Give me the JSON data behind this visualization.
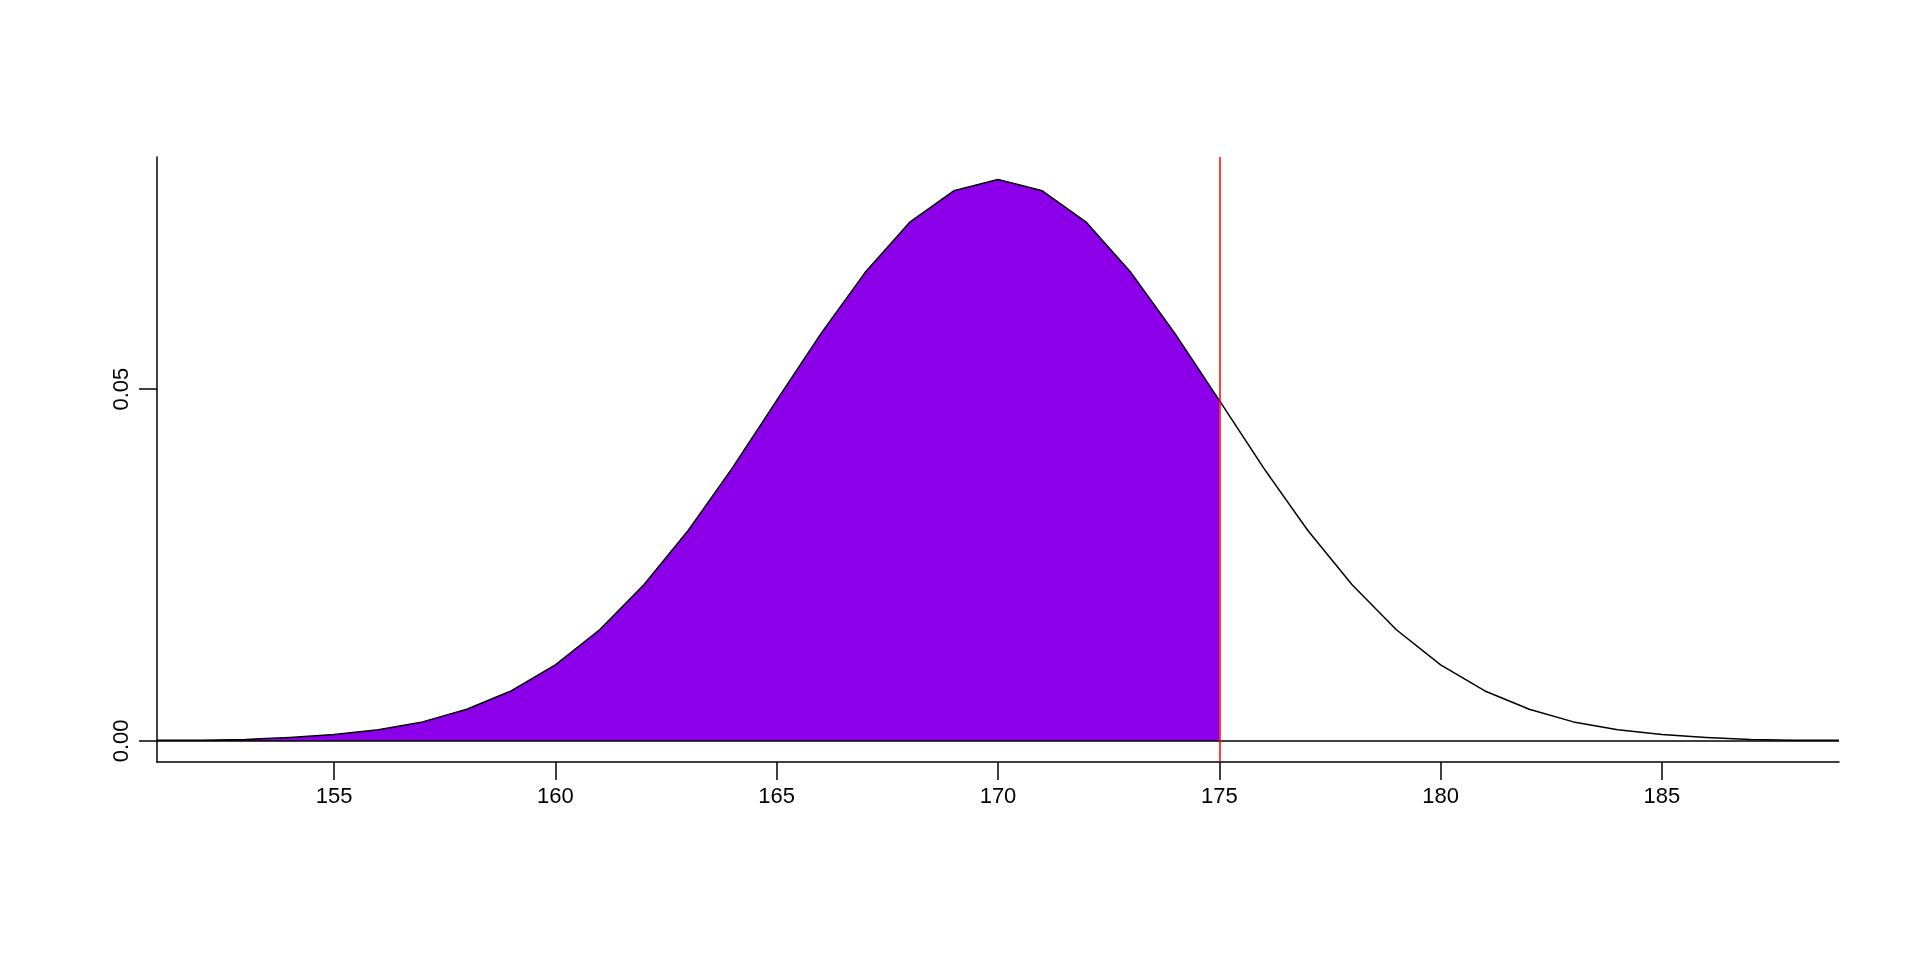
{
  "chart_data": {
    "type": "line",
    "xlim": [
      151,
      189
    ],
    "ylim": [
      -0.003,
      0.083
    ],
    "xticks": [
      155,
      160,
      165,
      170,
      175,
      180,
      185
    ],
    "yticks": [
      {
        "value": 0,
        "label": "0.00"
      },
      {
        "value": 0.05,
        "label": "0.05"
      }
    ],
    "grid": false,
    "marker": "none",
    "line_style": "solid",
    "series": [
      {
        "type": "area",
        "color": "#8b00e8",
        "x": [
          151,
          152,
          153,
          154,
          155,
          156,
          157,
          158,
          159,
          160,
          161,
          162,
          163,
          164,
          165,
          166,
          167,
          168,
          169,
          170,
          171,
          172,
          173,
          174,
          175
        ],
        "values": [
          0.0001,
          0.0001,
          0.0002,
          0.0005,
          0.0009,
          0.0016,
          0.0027,
          0.0045,
          0.0071,
          0.0108,
          0.0158,
          0.0222,
          0.0299,
          0.0388,
          0.0484,
          0.0579,
          0.0666,
          0.0737,
          0.0782,
          0.0798,
          0.0782,
          0.0737,
          0.0666,
          0.0579,
          0.0484
        ]
      },
      {
        "color": "#000000",
        "x": [
          151,
          152,
          153,
          154,
          155,
          156,
          157,
          158,
          159,
          160,
          161,
          162,
          163,
          164,
          165,
          166,
          167,
          168,
          169,
          170,
          171,
          172,
          173,
          174,
          175,
          176,
          177,
          178,
          179,
          180,
          181,
          182,
          183,
          184,
          185,
          186,
          187,
          188,
          189
        ],
        "values": [
          0.0001,
          0.0001,
          0.0002,
          0.0005,
          0.0009,
          0.0016,
          0.0027,
          0.0045,
          0.0071,
          0.0108,
          0.0158,
          0.0222,
          0.0299,
          0.0388,
          0.0484,
          0.0579,
          0.0666,
          0.0737,
          0.0782,
          0.0798,
          0.0782,
          0.0737,
          0.0666,
          0.0579,
          0.0484,
          0.0388,
          0.0299,
          0.0222,
          0.0158,
          0.0108,
          0.0071,
          0.0045,
          0.0027,
          0.0016,
          0.0009,
          0.0005,
          0.0002,
          0.0001,
          0.0001
        ]
      }
    ],
    "ref_lines": [
      {
        "axis": "y",
        "value": 0,
        "color": "#000000"
      },
      {
        "axis": "x",
        "value": 175,
        "color": "#ff0000"
      }
    ]
  }
}
